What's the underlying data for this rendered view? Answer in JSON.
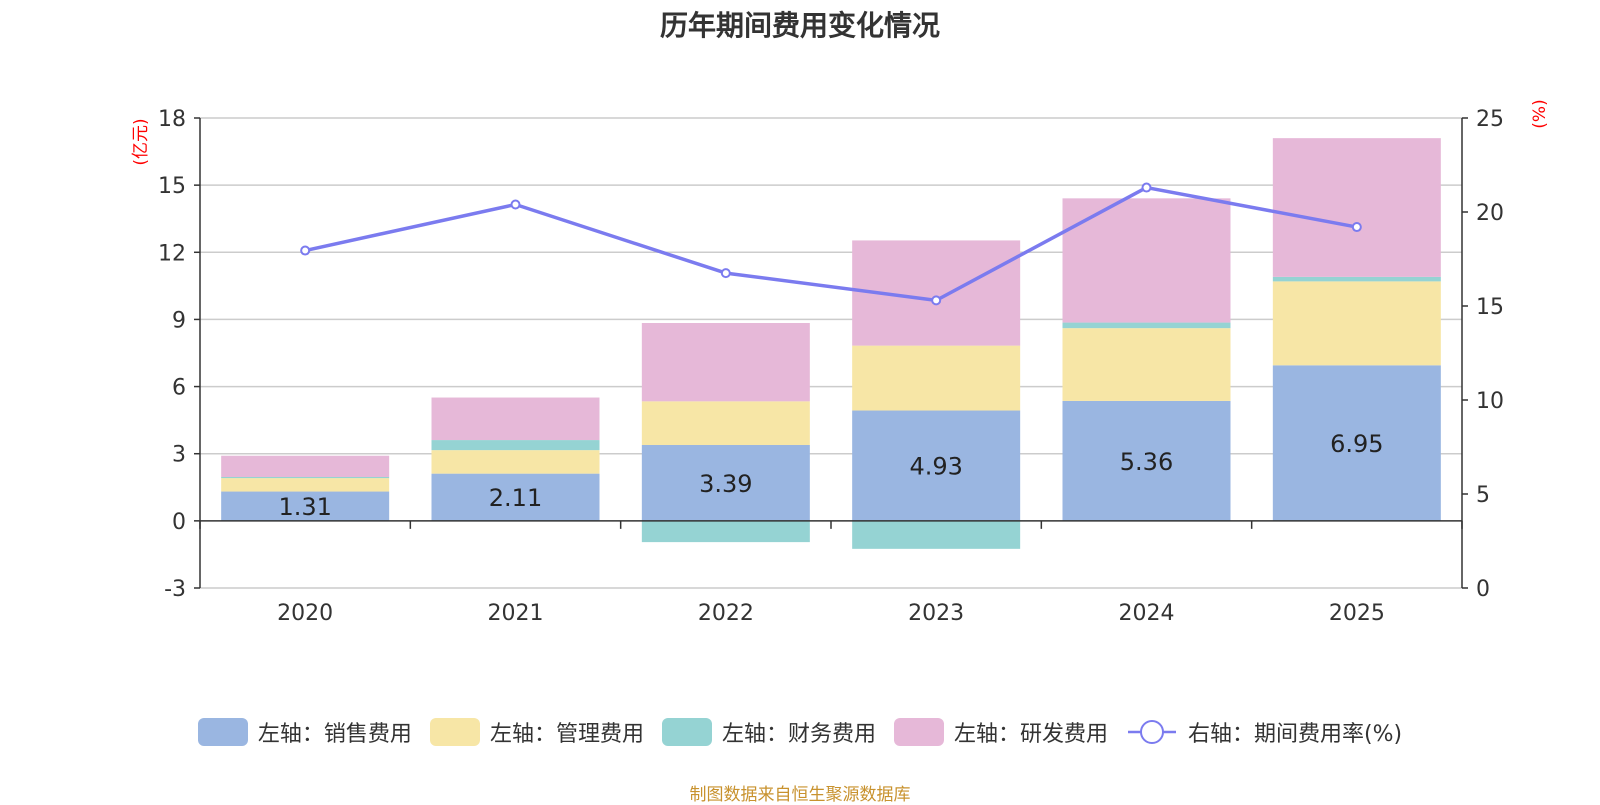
{
  "chart_data": {
    "type": "bar",
    "title": "历年期间费用变化情况",
    "categories": [
      "2020",
      "2021",
      "2022",
      "2023",
      "2024",
      "2025"
    ],
    "left_axis": {
      "label": "(亿元)",
      "ylim": [
        -3,
        18
      ],
      "ticks": [
        -3,
        0,
        3,
        6,
        9,
        12,
        15,
        18
      ]
    },
    "right_axis": {
      "label": "(%)",
      "ylim": [
        0,
        25
      ],
      "ticks": [
        0,
        5,
        10,
        15,
        20,
        25
      ]
    },
    "series": [
      {
        "name": "左轴：销售费用",
        "type": "bar",
        "axis": "left",
        "color": "#9ab6e1",
        "values": [
          1.31,
          2.11,
          3.39,
          4.93,
          5.36,
          6.95
        ],
        "labels": [
          "1.31",
          "2.11",
          "3.39",
          "4.93",
          "5.36",
          "6.95"
        ]
      },
      {
        "name": "左轴：管理费用",
        "type": "bar",
        "axis": "left",
        "color": "#f7e6a6",
        "values": [
          0.6,
          1.05,
          1.95,
          2.9,
          3.25,
          3.75
        ]
      },
      {
        "name": "左轴：财务费用",
        "type": "bar",
        "axis": "left",
        "color": "#95d3d3",
        "values": [
          0.05,
          0.45,
          -0.95,
          -1.25,
          0.25,
          0.2
        ]
      },
      {
        "name": "左轴：研发费用",
        "type": "bar",
        "axis": "left",
        "color": "#e6b8d8",
        "values": [
          0.95,
          1.9,
          3.5,
          4.7,
          5.55,
          6.2
        ]
      },
      {
        "name": "右轴：期间费用率(%)",
        "type": "line",
        "axis": "right",
        "color": "#7b7bef",
        "values": [
          17.95,
          20.4,
          16.75,
          15.3,
          21.3,
          19.2
        ]
      }
    ],
    "grid": true,
    "legend_position": "bottom",
    "source": "制图数据来自恒生聚源数据库"
  }
}
